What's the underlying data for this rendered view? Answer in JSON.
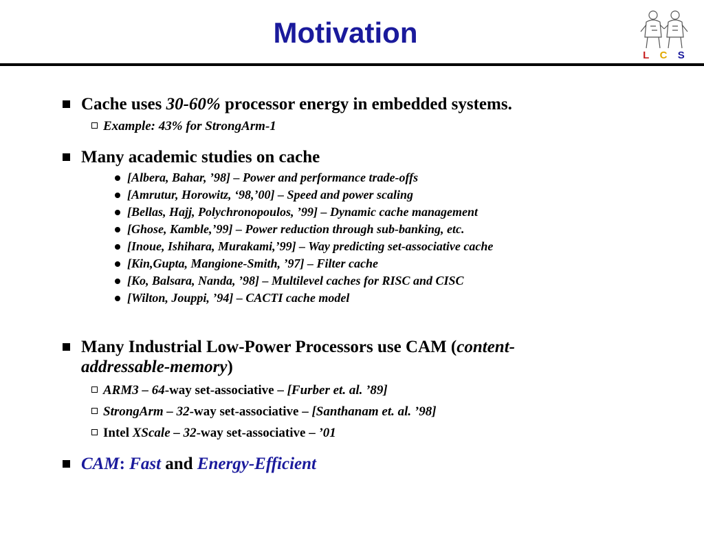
{
  "slide": {
    "title": "Motivation",
    "logo": {
      "letters": [
        "L",
        "C",
        "S"
      ],
      "letter_colors": [
        "#c81e1e",
        "#e0a800",
        "#1a1a9c"
      ],
      "icon": "two-figures-icon"
    }
  },
  "bullets": {
    "b1": {
      "pre": "Cache uses ",
      "em": "30-60%",
      "post": " processor energy in embedded systems."
    },
    "b1_sub": "Example: 43% for StrongArm-1",
    "b2": "Many academic studies on cache",
    "refs": [
      "[Albera, Bahar, ’98] – Power and performance trade-offs",
      "[Amrutur, Horowitz, ‘98,’00] – Speed and power scaling",
      "[Bellas, Hajj, Polychronopoulos, ’99] – Dynamic cache management",
      "[Ghose, Kamble,’99] – Power reduction through sub-banking, etc.",
      "[Inoue, Ishihara, Murakami,’99] – Way predicting set-associative cache",
      "[Kin,Gupta, Mangione-Smith, ’97] – Filter cache",
      "[Ko, Balsara, Nanda, ’98] – Multilevel caches for RISC and CISC",
      "[Wilton, Jouppi, ’94] – CACTI cache model"
    ],
    "b3": {
      "line1_pre": "Many Industrial Low-Power Processors use CAM (",
      "line1_em": "content-",
      "line2_em": "addressable-memory",
      "line2_post": ")"
    },
    "b3_subs": [
      {
        "pre": "",
        "em1": "ARM3 – 64",
        "mid": "-way set-associative – ",
        "em2": "[Furber et. al. ’89]"
      },
      {
        "pre": "",
        "em1": "StrongArm – 32",
        "mid": "-way set-associative – ",
        "em2": "[Santhanam et. al. ’98]"
      },
      {
        "pre": "Intel ",
        "em1": "XScale – 32",
        "mid": "-way set-associative – ",
        "em2": "’01"
      }
    ],
    "b4": {
      "cam": "CAM",
      "colon": ": ",
      "fast": "Fast",
      "and": " and ",
      "ee": "Energy-Efficient"
    }
  },
  "colors": {
    "title": "#1a1a9c",
    "accent": "#1a1a9c"
  }
}
